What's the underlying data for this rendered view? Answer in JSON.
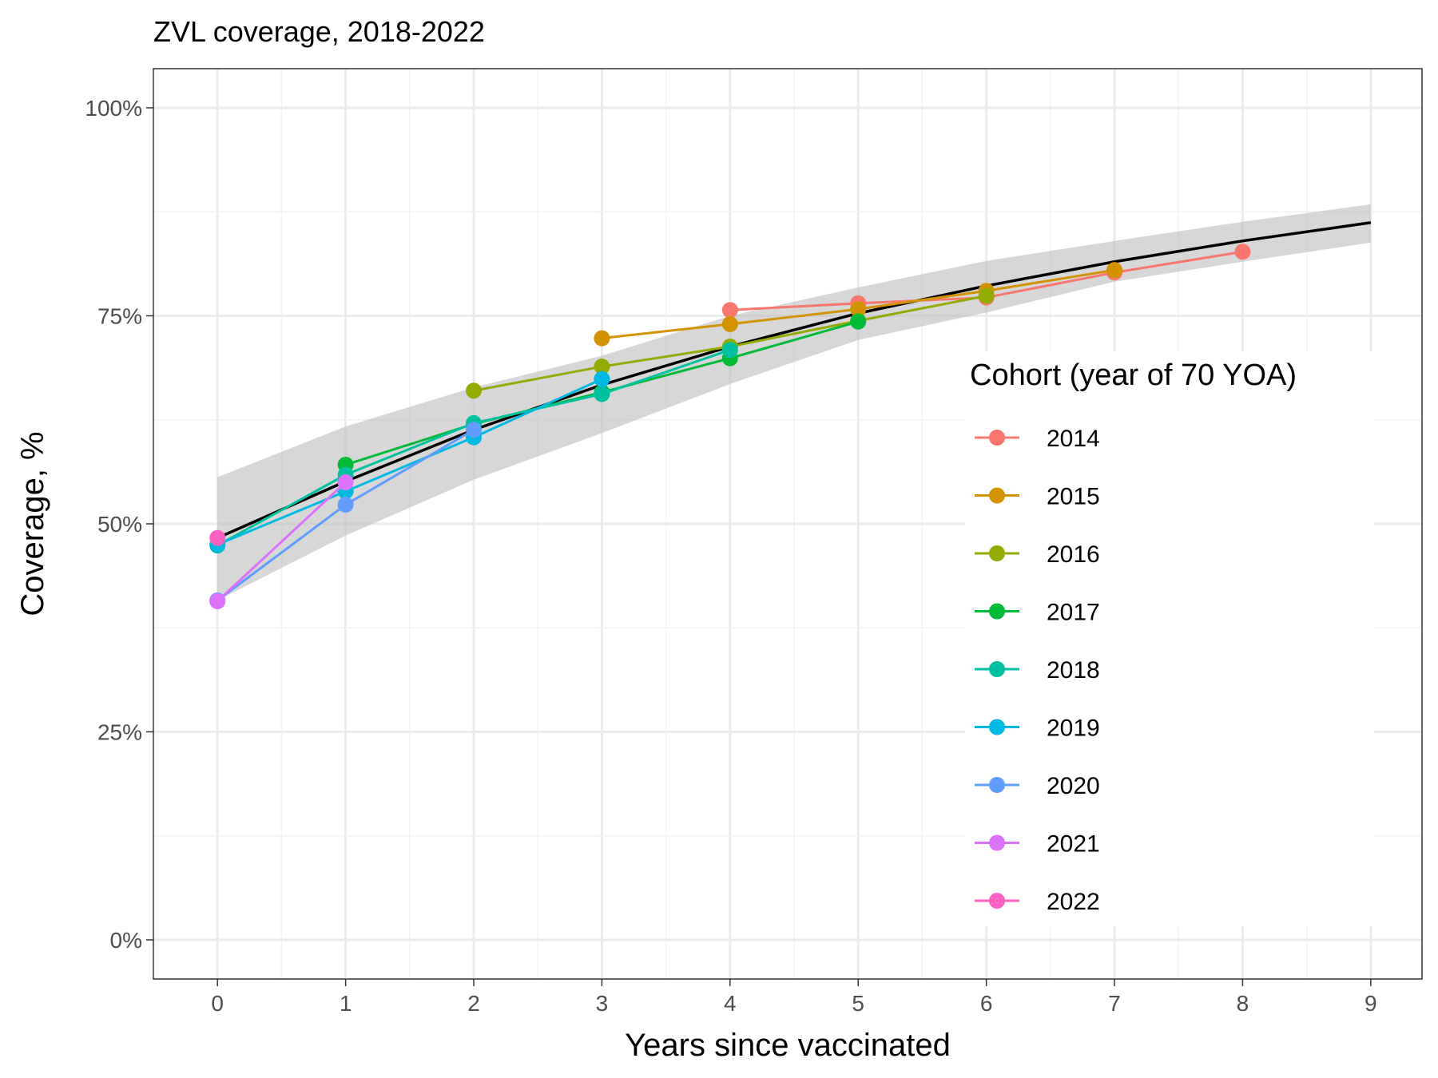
{
  "chart_data": {
    "type": "line",
    "title": "ZVL coverage, 2018-2022",
    "xlabel": "Years since vaccinated",
    "ylabel": "Coverage, %",
    "xlim": [
      -0.5,
      9.4
    ],
    "ylim": [
      -0.047,
      1.047
    ],
    "x_ticks": [
      0,
      1,
      2,
      3,
      4,
      5,
      6,
      7,
      8,
      9
    ],
    "x_tick_labels": [
      "0",
      "1",
      "2",
      "3",
      "4",
      "5",
      "6",
      "7",
      "8",
      "9"
    ],
    "y_ticks": [
      0,
      0.25,
      0.5,
      0.75,
      1.0
    ],
    "y_tick_labels": [
      "0%",
      "25%",
      "50%",
      "75%",
      "100%"
    ],
    "grid": true,
    "legend": {
      "title": "Cohort (year of 70 YOA)",
      "position": "right-inside"
    },
    "fit": {
      "color": "#000000",
      "band_color": "#bdbdbd",
      "x": [
        0,
        1,
        2,
        3,
        4,
        5,
        6,
        7,
        8,
        9
      ],
      "y": [
        0.483,
        0.551,
        0.613,
        0.667,
        0.713,
        0.753,
        0.786,
        0.815,
        0.84,
        0.862
      ],
      "lower": [
        0.408,
        0.486,
        0.553,
        0.609,
        0.668,
        0.721,
        0.754,
        0.791,
        0.815,
        0.838
      ],
      "upper": [
        0.556,
        0.617,
        0.664,
        0.702,
        0.75,
        0.784,
        0.816,
        0.84,
        0.863,
        0.884
      ]
    },
    "series": [
      {
        "name": "2014",
        "color": "#F8766D",
        "x": [
          4,
          5,
          6,
          7,
          8
        ],
        "y": [
          0.757,
          0.765,
          0.772,
          0.802,
          0.827
        ]
      },
      {
        "name": "2015",
        "color": "#D39200",
        "x": [
          3,
          4,
          5,
          6,
          7
        ],
        "y": [
          0.723,
          0.74,
          0.758,
          0.78,
          0.805
        ]
      },
      {
        "name": "2016",
        "color": "#93AA00",
        "x": [
          2,
          3,
          4,
          5,
          6
        ],
        "y": [
          0.66,
          0.689,
          0.713,
          0.744,
          0.774
        ]
      },
      {
        "name": "2017",
        "color": "#00BA38",
        "x": [
          1,
          2,
          3,
          4,
          5
        ],
        "y": [
          0.571,
          0.62,
          0.658,
          0.699,
          0.743
        ]
      },
      {
        "name": "2018",
        "color": "#00C19F",
        "x": [
          0,
          1,
          2,
          3,
          4
        ],
        "y": [
          0.474,
          0.559,
          0.621,
          0.656,
          0.709
        ]
      },
      {
        "name": "2019",
        "color": "#00B9E3",
        "x": [
          0,
          1,
          2,
          3
        ],
        "y": [
          0.475,
          0.539,
          0.604,
          0.674
        ]
      },
      {
        "name": "2020",
        "color": "#619CFF",
        "x": [
          0,
          1,
          2
        ],
        "y": [
          0.408,
          0.523,
          0.613
        ]
      },
      {
        "name": "2021",
        "color": "#DB72FB",
        "x": [
          0,
          1
        ],
        "y": [
          0.407,
          0.55
        ]
      },
      {
        "name": "2022",
        "color": "#FF61C3",
        "x": [
          0
        ],
        "y": [
          0.483
        ]
      }
    ]
  }
}
